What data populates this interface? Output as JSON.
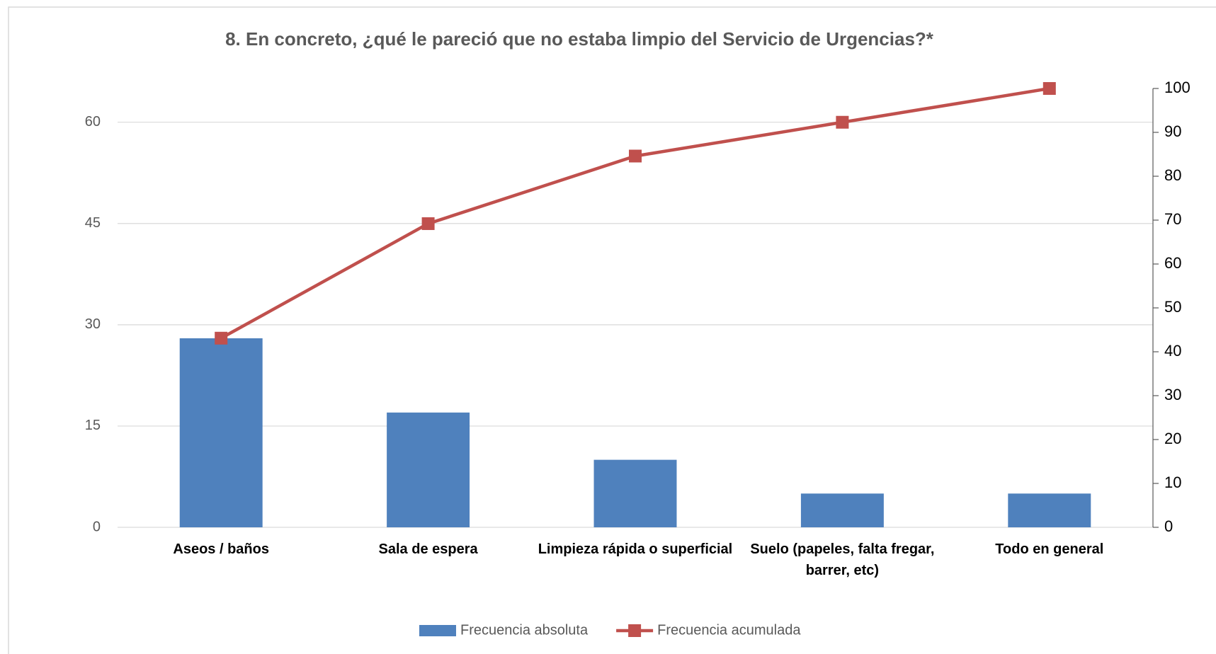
{
  "chart_data": {
    "type": "pareto",
    "title": "8. En concreto, ¿qué le pareció que no estaba limpio del Servicio de Urgencias?*",
    "categories": [
      "Aseos / baños",
      "Sala de espera",
      "Limpieza rápida o superficial",
      "Suelo (papeles, falta fregar, barrer, etc)",
      "Todo en general"
    ],
    "series": [
      {
        "name": "Frecuencia absoluta",
        "type": "bar",
        "color": "#4f81bd",
        "values": [
          28,
          17,
          10,
          5,
          5
        ]
      },
      {
        "name": "Frecuencia acumulada",
        "type": "line",
        "axis": "y2",
        "color": "#c0504d",
        "values": [
          43.1,
          69.2,
          84.6,
          92.3,
          100
        ]
      }
    ],
    "ylim": [
      0,
      65
    ],
    "yticks": [
      0,
      15,
      30,
      45,
      60
    ],
    "y2lim": [
      0,
      100
    ],
    "y2ticks": [
      0,
      10,
      20,
      30,
      40,
      50,
      60,
      70,
      80,
      90,
      100
    ],
    "grid": true,
    "legend": "bottom"
  }
}
